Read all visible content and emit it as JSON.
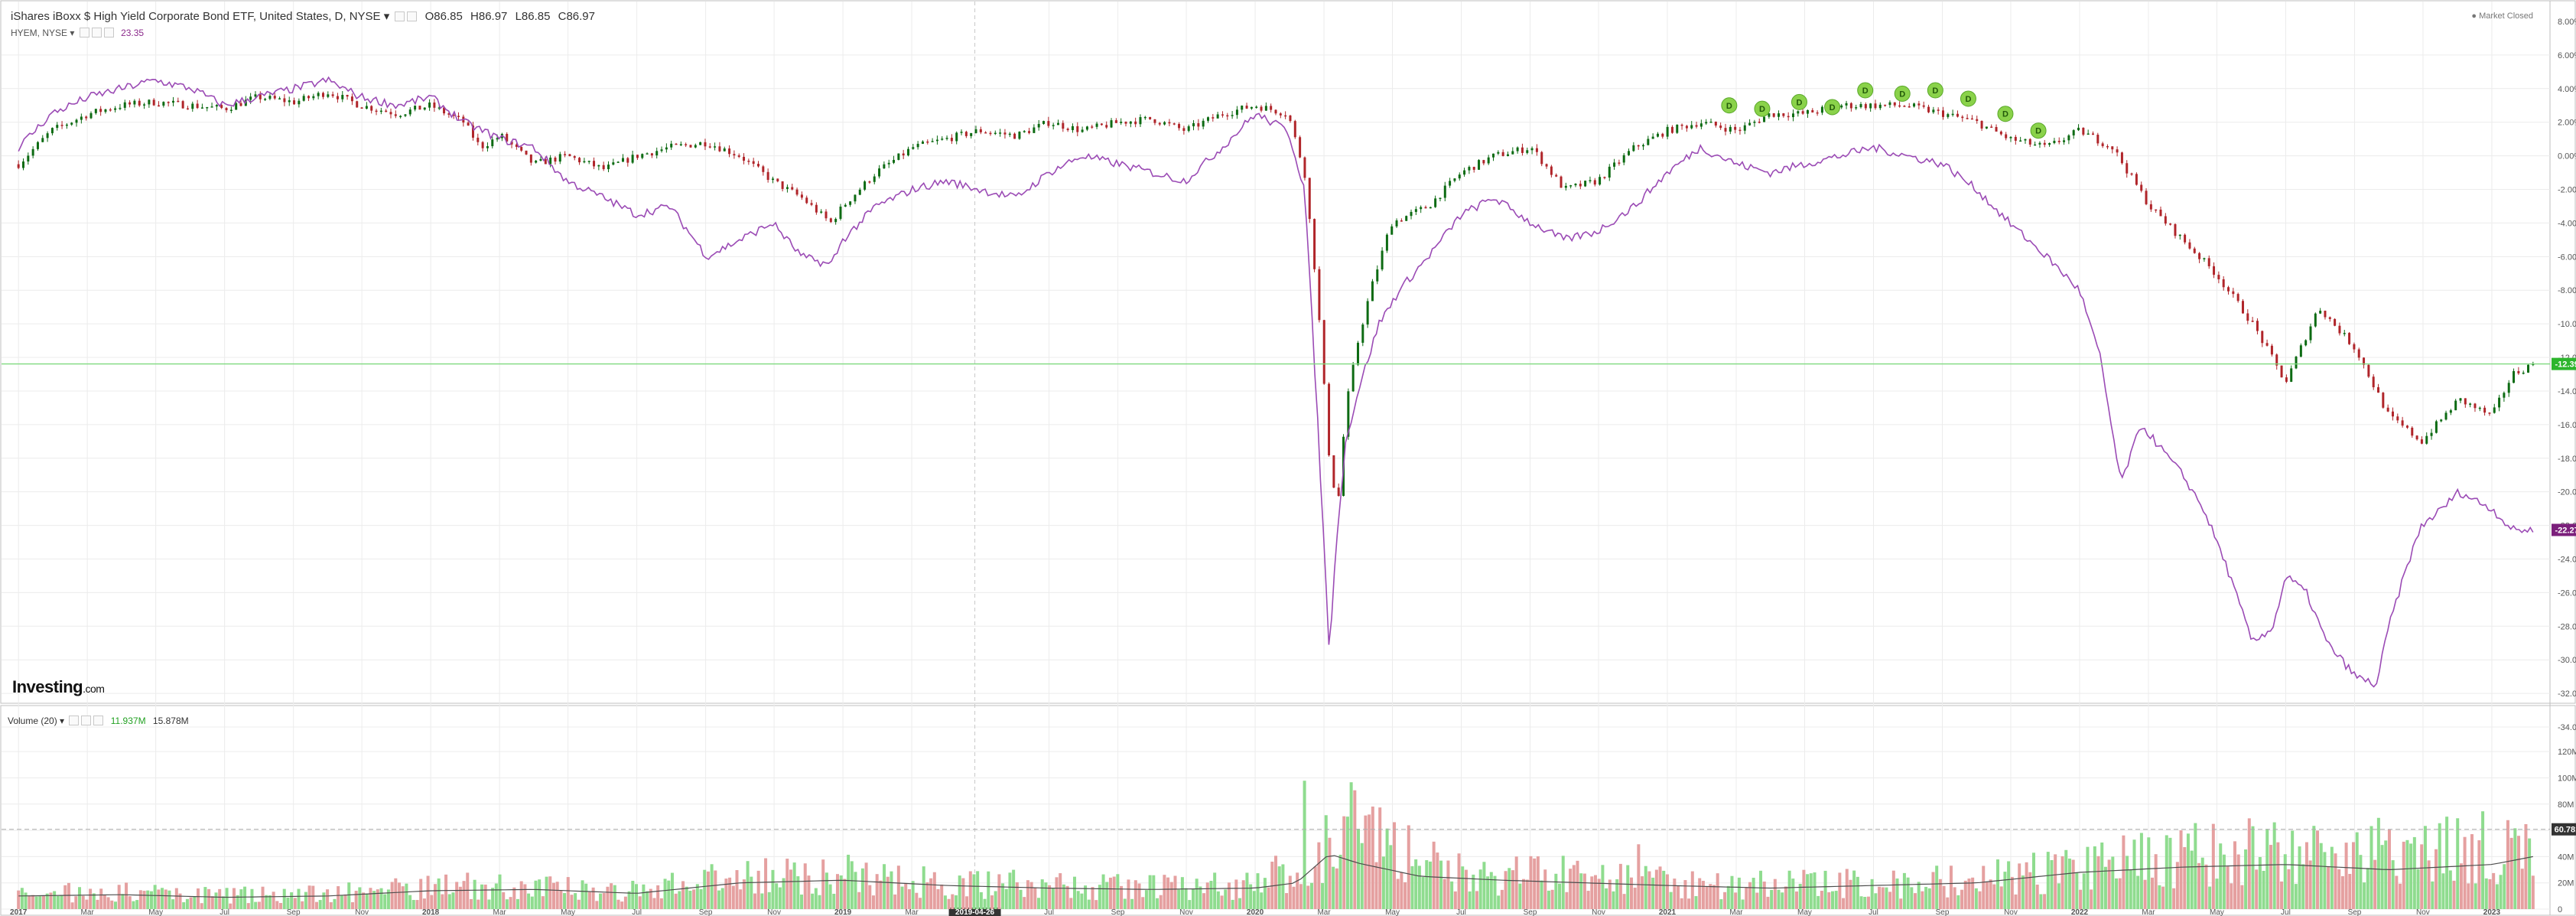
{
  "header": {
    "title": "iShares iBoxx $ High Yield Corporate Bond ETF, United States, D, NYSE",
    "open": "O86.85",
    "high": "H86.97",
    "low": "L86.85",
    "close": "C86.97",
    "compare_symbol": "HYEM, NYSE",
    "compare_value": "23.35",
    "market_status": "Market Closed"
  },
  "volume_header": {
    "label": "Volume (20)",
    "value1": "11.937M",
    "value2": "15.878M"
  },
  "logo": {
    "name": "Investing",
    "suffix": ".com"
  },
  "colors": {
    "up_candle": "#0d6b13",
    "down_candle": "#b0252a",
    "compare_line": "#9b4bb5",
    "h_line": "#7fd97f",
    "vol_up": "#8fdc8f",
    "vol_down": "#e5a0a0",
    "dividend_badge": "#8ad24a"
  },
  "chart_data": [
    {
      "type": "line",
      "title": "iShares iBoxx $ High Yield Corporate Bond ETF (% change) vs HYEM, NYSE",
      "x_labels": [
        "2017",
        "Mar",
        "May",
        "Jul",
        "Sep",
        "Nov",
        "2018",
        "Mar",
        "May",
        "Jul",
        "Sep",
        "Nov",
        "2019",
        "Mar",
        "2019-04-26",
        "Jul",
        "Sep",
        "Nov",
        "2020",
        "Mar",
        "May",
        "Jul",
        "Sep",
        "Nov",
        "2021",
        "Mar",
        "May",
        "Jul",
        "Sep",
        "Nov",
        "2022",
        "Mar",
        "May",
        "Jul",
        "Sep",
        "Nov",
        "2023"
      ],
      "x_label_dates": [
        2017.0,
        2017.167,
        2017.333,
        2017.5,
        2017.667,
        2017.833,
        2018.0,
        2018.167,
        2018.333,
        2018.5,
        2018.667,
        2018.833,
        2019.0,
        2019.167,
        2019.32,
        2019.5,
        2019.667,
        2019.833,
        2020.0,
        2020.167,
        2020.333,
        2020.5,
        2020.667,
        2020.833,
        2021.0,
        2021.167,
        2021.333,
        2021.5,
        2021.667,
        2021.833,
        2022.0,
        2022.167,
        2022.333,
        2022.5,
        2022.667,
        2022.833,
        2023.0
      ],
      "highlight_label": "2019-04-26",
      "x_range": [
        2016.97,
        2023.13
      ],
      "y_ticks": [
        "6.00%",
        "4.00%",
        "2.00%",
        "0.00%",
        "-2.00%",
        "-4.00%",
        "-6.00%",
        "-8.00%",
        "-10.00%",
        "-12.00%",
        "-14.00%",
        "-16.00%",
        "-18.00%",
        "-20.00%",
        "-22.00%",
        "-24.00%",
        "-26.00%",
        "-28.00%",
        "-30.00%",
        "-32.00%",
        "-34.00%"
      ],
      "ylim": [
        -34,
        8
      ],
      "y_top_label": "8.00%",
      "series": [
        {
          "name": "iShares iBoxx $ High Yield Corporate Bond ETF",
          "style": "candlestick",
          "x": [
            2017.0,
            2017.08,
            2017.17,
            2017.25,
            2017.33,
            2017.42,
            2017.5,
            2017.58,
            2017.67,
            2017.75,
            2017.83,
            2017.92,
            2018.0,
            2018.08,
            2018.12,
            2018.17,
            2018.25,
            2018.33,
            2018.42,
            2018.5,
            2018.58,
            2018.67,
            2018.75,
            2018.83,
            2018.9,
            2018.97,
            2019.0,
            2019.08,
            2019.17,
            2019.25,
            2019.33,
            2019.42,
            2019.5,
            2019.58,
            2019.67,
            2019.75,
            2019.83,
            2019.92,
            2020.0,
            2020.08,
            2020.12,
            2020.15,
            2020.18,
            2020.2,
            2020.22,
            2020.25,
            2020.28,
            2020.33,
            2020.42,
            2020.5,
            2020.58,
            2020.67,
            2020.75,
            2020.83,
            2020.92,
            2021.0,
            2021.08,
            2021.17,
            2021.25,
            2021.33,
            2021.42,
            2021.5,
            2021.58,
            2021.67,
            2021.75,
            2021.83,
            2021.92,
            2022.0,
            2022.08,
            2022.17,
            2022.25,
            2022.33,
            2022.42,
            2022.5,
            2022.58,
            2022.67,
            2022.75,
            2022.83,
            2022.92,
            2023.0,
            2023.05,
            2023.1
          ],
          "values": [
            -0.5,
            1.5,
            2.5,
            3.0,
            3.2,
            3.0,
            2.8,
            3.5,
            3.2,
            3.8,
            3.0,
            2.5,
            3.0,
            2.0,
            0.5,
            1.2,
            -0.5,
            0.0,
            -0.8,
            0.0,
            0.5,
            0.8,
            0.0,
            -1.5,
            -2.5,
            -4.0,
            -3.0,
            -1.0,
            0.5,
            1.0,
            1.5,
            1.2,
            2.0,
            1.5,
            2.0,
            2.2,
            1.5,
            2.5,
            3.0,
            2.5,
            -1.0,
            -8.0,
            -18.0,
            -21.0,
            -15.0,
            -11.0,
            -8.0,
            -4.0,
            -3.0,
            -1.0,
            0.0,
            0.5,
            -2.0,
            -1.5,
            0.5,
            1.5,
            2.0,
            1.5,
            2.5,
            2.5,
            3.0,
            3.0,
            3.0,
            2.5,
            2.0,
            1.0,
            0.5,
            1.5,
            0.5,
            -3.0,
            -5.0,
            -7.0,
            -10.0,
            -13.5,
            -9.0,
            -11.5,
            -15.5,
            -17.0,
            -14.5,
            -15.5,
            -13.0,
            -12.4
          ]
        },
        {
          "name": "HYEM, NYSE",
          "style": "line",
          "x": [
            2017.0,
            2017.08,
            2017.17,
            2017.25,
            2017.33,
            2017.42,
            2017.5,
            2017.58,
            2017.67,
            2017.75,
            2017.83,
            2017.92,
            2018.0,
            2018.08,
            2018.17,
            2018.25,
            2018.33,
            2018.42,
            2018.5,
            2018.58,
            2018.67,
            2018.75,
            2018.83,
            2018.9,
            2018.97,
            2019.0,
            2019.08,
            2019.17,
            2019.25,
            2019.33,
            2019.42,
            2019.5,
            2019.58,
            2019.67,
            2019.75,
            2019.83,
            2019.92,
            2020.0,
            2020.08,
            2020.12,
            2020.15,
            2020.18,
            2020.2,
            2020.22,
            2020.25,
            2020.3,
            2020.35,
            2020.42,
            2020.5,
            2020.58,
            2020.67,
            2020.75,
            2020.83,
            2020.92,
            2021.0,
            2021.08,
            2021.17,
            2021.25,
            2021.33,
            2021.42,
            2021.5,
            2021.58,
            2021.67,
            2021.75,
            2021.83,
            2021.92,
            2022.0,
            2022.05,
            2022.1,
            2022.15,
            2022.25,
            2022.3,
            2022.35,
            2022.42,
            2022.47,
            2022.5,
            2022.55,
            2022.6,
            2022.67,
            2022.72,
            2022.75,
            2022.8,
            2022.83,
            2022.88,
            2022.92,
            2023.0,
            2023.05,
            2023.1
          ],
          "values": [
            0.5,
            2.5,
            3.5,
            4.0,
            4.5,
            4.0,
            3.0,
            3.5,
            4.0,
            4.5,
            3.5,
            3.0,
            3.5,
            2.0,
            1.0,
            0.5,
            -1.5,
            -2.5,
            -3.5,
            -3.0,
            -6.0,
            -5.0,
            -4.0,
            -6.0,
            -6.5,
            -5.0,
            -3.0,
            -2.0,
            -1.5,
            -2.0,
            -2.5,
            -1.0,
            0.0,
            -0.5,
            -1.0,
            -1.5,
            0.5,
            2.5,
            1.5,
            -2.0,
            -15.0,
            -29.5,
            -22.0,
            -17.0,
            -14.0,
            -10.0,
            -8.0,
            -6.0,
            -3.5,
            -2.5,
            -4.0,
            -5.0,
            -4.5,
            -3.0,
            -1.0,
            0.5,
            -0.5,
            -1.0,
            -0.5,
            0.0,
            0.5,
            0.0,
            -0.5,
            -2.0,
            -4.0,
            -6.0,
            -8.0,
            -12.0,
            -19.5,
            -16.0,
            -19.0,
            -21.0,
            -24.0,
            -29.0,
            -28.0,
            -25.0,
            -26.0,
            -29.0,
            -31.0,
            -31.5,
            -28.0,
            -24.0,
            -22.0,
            -21.0,
            -20.0,
            -21.0,
            -22.27,
            -22.27
          ]
        }
      ],
      "current_labels": {
        "main": "-12.39%",
        "compare": "-22.27%"
      },
      "dividend_markers": {
        "label": "D",
        "x": [
          2021.15,
          2021.23,
          2021.32,
          2021.4,
          2021.48,
          2021.57,
          2021.65,
          2021.73,
          2021.82,
          2021.9
        ],
        "y": [
          3.0,
          2.8,
          3.2,
          2.9,
          3.9,
          3.7,
          3.9,
          3.4,
          2.5,
          1.5
        ]
      }
    },
    {
      "type": "bar",
      "title": "Volume (20)",
      "y_ticks": [
        "0",
        "20M",
        "40M",
        "60M",
        "80M",
        "100M",
        "120M"
      ],
      "ylim": [
        0,
        130
      ],
      "unit": "M",
      "current_label": "60.781M",
      "series": [
        {
          "name": "Volume level (M)",
          "x": [
            2017.0,
            2017.25,
            2017.5,
            2017.75,
            2018.0,
            2018.25,
            2018.5,
            2018.75,
            2019.0,
            2019.25,
            2019.5,
            2019.75,
            2020.0,
            2020.15,
            2020.2,
            2020.3,
            2020.5,
            2020.75,
            2021.0,
            2021.25,
            2021.5,
            2021.75,
            2022.0,
            2022.25,
            2022.5,
            2022.75,
            2023.0,
            2023.1
          ],
          "values": [
            12,
            14,
            12,
            13,
            20,
            18,
            16,
            28,
            30,
            22,
            20,
            18,
            20,
            45,
            75,
            55,
            30,
            28,
            22,
            20,
            22,
            25,
            35,
            45,
            50,
            48,
            52,
            45
          ]
        },
        {
          "name": "Volume MA (20)",
          "x": [
            2017.0,
            2017.25,
            2017.5,
            2017.75,
            2018.0,
            2018.25,
            2018.5,
            2018.75,
            2019.0,
            2019.25,
            2019.5,
            2019.75,
            2020.0,
            2020.1,
            2020.18,
            2020.25,
            2020.4,
            2020.6,
            2020.8,
            2021.0,
            2021.25,
            2021.5,
            2021.75,
            2022.0,
            2022.25,
            2022.5,
            2022.75,
            2023.0,
            2023.1
          ],
          "values": [
            10,
            11,
            9,
            10,
            14,
            15,
            12,
            20,
            22,
            18,
            16,
            15,
            16,
            20,
            42,
            35,
            25,
            22,
            20,
            18,
            16,
            18,
            20,
            28,
            32,
            34,
            30,
            34,
            40
          ]
        }
      ]
    }
  ]
}
